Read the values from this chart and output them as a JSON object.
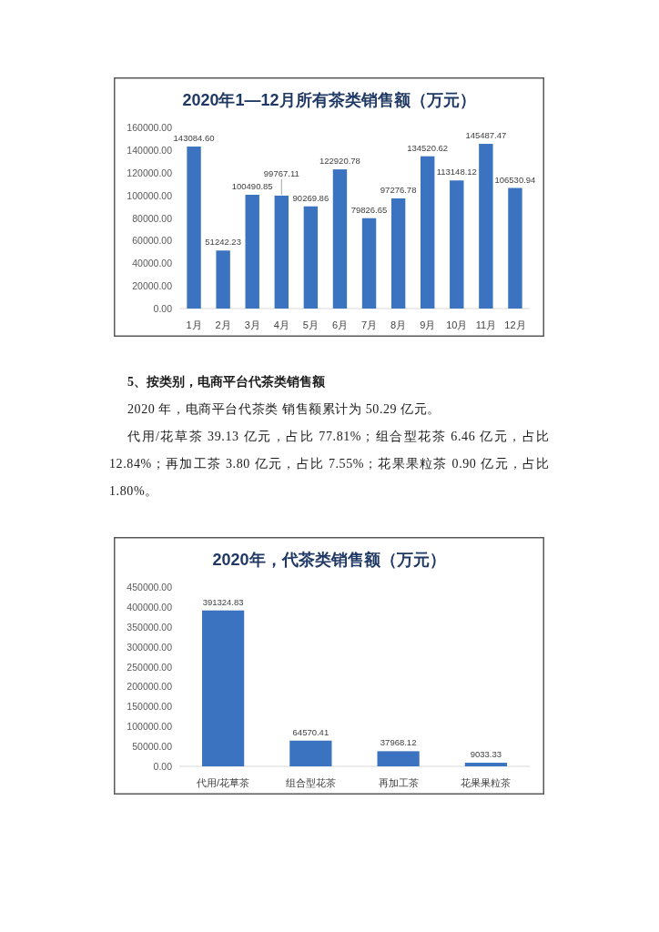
{
  "chart_data": [
    {
      "type": "bar",
      "title": "2020年1—12月所有茶类销售额（万元）",
      "categories": [
        "1月",
        "2月",
        "3月",
        "4月",
        "5月",
        "6月",
        "7月",
        "8月",
        "9月",
        "10月",
        "11月",
        "12月"
      ],
      "values": [
        143084.6,
        51242.23,
        100490.85,
        99767.11,
        90269.86,
        122920.78,
        79826.65,
        97276.78,
        134520.62,
        113148.12,
        145487.47,
        106530.94
      ],
      "value_labels": [
        "143084.60",
        "51242.23",
        "100490.85",
        "99767.11",
        "90269.86",
        "122920.78",
        "79826.65",
        "97276.78",
        "134520.62",
        "113148.12",
        "145487.47",
        "106530.94"
      ],
      "color": "#3b73c0",
      "ylim": [
        0,
        160000
      ],
      "yticks": [
        {
          "value": 0,
          "label": "0.00"
        },
        {
          "value": 20000,
          "label": "20000.00"
        },
        {
          "value": 40000,
          "label": "40000.00"
        },
        {
          "value": 60000,
          "label": "60000.00"
        },
        {
          "value": 80000,
          "label": "80000.00"
        },
        {
          "value": 100000,
          "label": "100000.00"
        },
        {
          "value": 120000,
          "label": "120000.00"
        },
        {
          "value": 140000,
          "label": "140000.00"
        },
        {
          "value": 160000,
          "label": "160000.00"
        }
      ]
    },
    {
      "type": "other",
      "title": "5、按类别，电商平台代茶类销售额",
      "annotations": [
        "2020 年，电商平台代茶类 销售额累计为 50.29 亿元。",
        "代用/花草茶 39.13 亿元，占比 77.81%；组合型花茶 6.46 亿元，占比 12.84%；再加工茶 3.80 亿元，占比 7.55%；花果果粒茶 0.90 亿元，占比 1.80%。"
      ]
    },
    {
      "type": "bar",
      "title": "2020年，代茶类销售额（万元）",
      "categories": [
        "代用/花草茶",
        "组合型花茶",
        "再加工茶",
        "花果果粒茶"
      ],
      "values": [
        391324.83,
        64570.41,
        37968.12,
        9033.33
      ],
      "value_labels": [
        "391324.83",
        "64570.41",
        "37968.12",
        "9033.33"
      ],
      "color": "#3b73c0",
      "ylim": [
        0,
        450000
      ],
      "yticks": [
        {
          "value": 0,
          "label": "0.00"
        },
        {
          "value": 50000,
          "label": "50000.00"
        },
        {
          "value": 100000,
          "label": "100000.00"
        },
        {
          "value": 150000,
          "label": "150000.00"
        },
        {
          "value": 200000,
          "label": "200000.00"
        },
        {
          "value": 250000,
          "label": "250000.00"
        },
        {
          "value": 300000,
          "label": "300000.00"
        },
        {
          "value": 350000,
          "label": "350000.00"
        },
        {
          "value": 400000,
          "label": "400000.00"
        },
        {
          "value": 450000,
          "label": "450000.00"
        }
      ]
    }
  ]
}
